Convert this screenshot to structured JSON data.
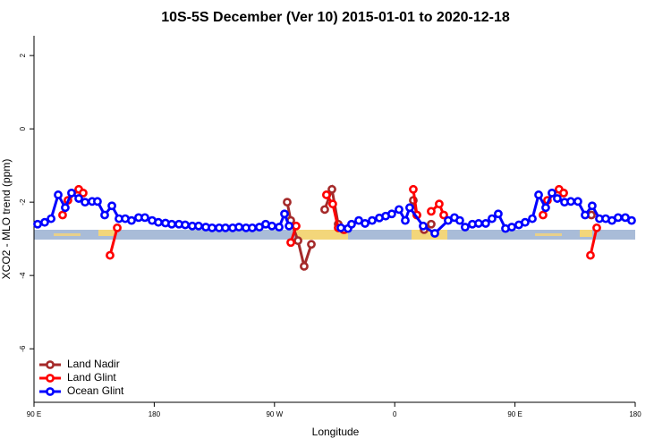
{
  "chart_data": {
    "type": "line",
    "title": "10S-5S December (Ver 10)   2015-01-01 to 2020-12-18",
    "x_label": "Longitude",
    "y_label": "XCO2 - MLO trend (ppm)",
    "xlim": [
      90,
      540
    ],
    "ylim": [
      -7.46,
      2.54
    ],
    "xticks": [
      {
        "value": 90,
        "label": "90 E"
      },
      180,
      {
        "value": 270,
        "label": "90 W"
      },
      {
        "value": 360,
        "label": "0"
      },
      {
        "value": 450,
        "label": "90 E"
      },
      {
        "value": 540,
        "label": "180"
      }
    ],
    "yticks": [
      2,
      0,
      -2,
      -4,
      -6
    ],
    "legend": "bottom-left",
    "series": [
      {
        "name": "Land Nadir",
        "color": "#a52a2a",
        "x": [
          279.5,
          282.2,
          287.6,
          292.2,
          297.6,
          null,
          307.6,
          313,
          317.7,
          321.7,
          null,
          373.9,
          376.6,
          null,
          382,
          387.3,
          null,
          486.4,
          null,
          507.2
        ],
        "values": [
          -2.0,
          -2.5,
          -3.05,
          -3.75,
          -3.15,
          null,
          -2.2,
          -1.65,
          -2.6,
          -2.75,
          null,
          -1.95,
          -2.35,
          null,
          -2.75,
          -2.6,
          null,
          -1.75,
          null,
          -2.35
        ]
      },
      {
        "name": "Land Glint",
        "color": "#ff0000",
        "x": [
          111.4,
          115.4,
          123.5,
          126.8,
          null,
          146.9,
          152.3,
          null,
          282.2,
          286.2,
          null,
          308.9,
          313.6,
          317.7,
          322.3,
          null,
          373.9,
          376.6,
          null,
          387.3,
          393.3,
          396.7,
          null,
          471,
          474.3,
          483,
          486.4,
          null,
          506.5,
          511.2
        ],
        "values": [
          -2.35,
          -1.95,
          -1.65,
          -1.75,
          null,
          -3.45,
          -2.7,
          null,
          -3.1,
          -2.65,
          null,
          -1.8,
          -2.05,
          -2.7,
          -2.75,
          null,
          -1.65,
          -2.35,
          null,
          -2.25,
          -2.05,
          -2.35,
          null,
          -2.35,
          -1.95,
          -1.65,
          -1.75,
          null,
          -3.45,
          -2.7
        ]
      },
      {
        "name": "Ocean Glint",
        "color": "#0000ff",
        "x": [
          92.7,
          98,
          102.8,
          108.1,
          113.4,
          118.1,
          123.5,
          128.2,
          133.5,
          137.5,
          142.9,
          148.3,
          153.6,
          158.3,
          163,
          168.3,
          173,
          178.4,
          183.1,
          188.4,
          193.1,
          198.5,
          203.2,
          208.5,
          213.2,
          218.6,
          223.3,
          228.6,
          233.3,
          238.7,
          243.4,
          248.7,
          253.4,
          258.7,
          263.4,
          268.1,
          273.5,
          277.5,
          280.9,
          null,
          319.7,
          325,
          327.7,
          333.1,
          337.8,
          343.1,
          348.5,
          353.2,
          357.8,
          363.2,
          367.9,
          371.2,
          381.3,
          390,
          400,
          404.7,
          408.7,
          412.7,
          418.1,
          422.8,
          428.1,
          432.8,
          437.5,
          442.9,
          447.6,
          452.9,
          457.6,
          463,
          467.7,
          473,
          477.7,
          481.7,
          487.1,
          491.8,
          497.1,
          502.5,
          507.8,
          513.2,
          517.9,
          522.6,
          527.2,
          532.6,
          537.3
        ],
        "values": [
          -2.6,
          -2.55,
          -2.45,
          -1.8,
          -2.15,
          -1.75,
          -1.9,
          -2.0,
          -1.98,
          -1.98,
          -2.35,
          -2.1,
          -2.45,
          -2.45,
          -2.5,
          -2.42,
          -2.42,
          -2.5,
          -2.55,
          -2.57,
          -2.6,
          -2.6,
          -2.62,
          -2.65,
          -2.65,
          -2.68,
          -2.7,
          -2.7,
          -2.7,
          -2.7,
          -2.68,
          -2.7,
          -2.7,
          -2.68,
          -2.6,
          -2.65,
          -2.68,
          -2.32,
          -2.65,
          null,
          -2.7,
          -2.72,
          -2.6,
          -2.5,
          -2.58,
          -2.5,
          -2.43,
          -2.38,
          -2.32,
          -2.2,
          -2.5,
          -2.15,
          -2.65,
          -2.85,
          -2.5,
          -2.42,
          -2.5,
          -2.68,
          -2.6,
          -2.58,
          -2.58,
          -2.45,
          -2.32,
          -2.72,
          -2.68,
          -2.62,
          -2.55,
          -2.45,
          -1.8,
          -2.15,
          -1.75,
          -1.9,
          -2.0,
          -1.98,
          -1.98,
          -2.35,
          -2.1,
          -2.45,
          -2.45,
          -2.5,
          -2.42,
          -2.42,
          -2.5
        ]
      }
    ]
  }
}
